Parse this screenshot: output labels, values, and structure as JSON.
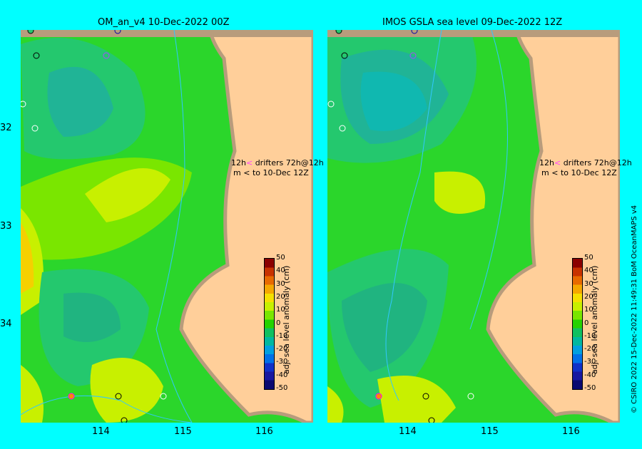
{
  "panels": [
    {
      "title": "OM_an_v4  10-Dec-2022 00Z"
    },
    {
      "title": "IMOS GSLA sea level  09-Dec-2022 12Z"
    }
  ],
  "y_ticks": [
    "32",
    "33",
    "34"
  ],
  "x_ticks": [
    "114",
    "115",
    "116"
  ],
  "legend": {
    "drifters_label": "12h",
    "drifters_text": "drifters 72h@12h",
    "m_label": "m",
    "to_text": "to 10-Dec 12Z"
  },
  "colorbar": {
    "title": "adj. sea level anomaly (cm)",
    "ticks": [
      "50",
      "40",
      "30",
      "20",
      "10",
      "0",
      "-10",
      "-20",
      "-30",
      "-40",
      "-50"
    ],
    "colors": [
      "#8b0000",
      "#c83200",
      "#e86a00",
      "#f5a800",
      "#f5e000",
      "#c8f000",
      "#7ae600",
      "#24d200",
      "#10c060",
      "#00b8a0",
      "#00a0e0",
      "#0070e8",
      "#1030c8",
      "#1818a0",
      "#0a0a70"
    ]
  },
  "credit": "© CSIRO 2022   15-Dec-2022 11:49:31 BoM OceanMAPS v4",
  "colors": {
    "background": "#00ffff",
    "land": "#ffcf9a",
    "shelf": "#c8a880"
  }
}
